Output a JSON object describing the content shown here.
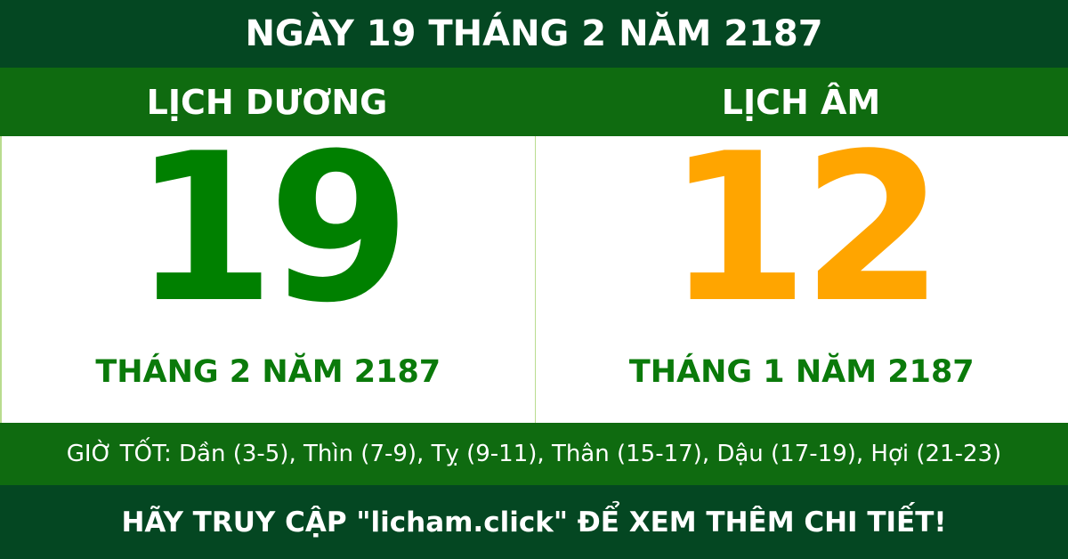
{
  "title": "NGÀY 19 THÁNG 2 NĂM 2187",
  "solar": {
    "label": "LỊCH DƯƠNG",
    "day": "19",
    "month_year": "THÁNG 2 NĂM 2187"
  },
  "lunar": {
    "label": "LỊCH ÂM",
    "day": "12",
    "month_year": "THÁNG 1 NĂM 2187"
  },
  "good_hours": "GIỜ TỐT: Dần (3-5), Thìn (7-9), Tỵ (9-11), Thân (15-17), Dậu (17-19), Hợi (21-23)",
  "footer": "HÃY TRUY CẬP \"licham.click\" ĐỂ XEM THÊM CHI TIẾT!",
  "colors": {
    "dark_green": "#044722",
    "band_green": "#0f6b10",
    "solar_day": "#008000",
    "lunar_day": "#ffa500"
  }
}
